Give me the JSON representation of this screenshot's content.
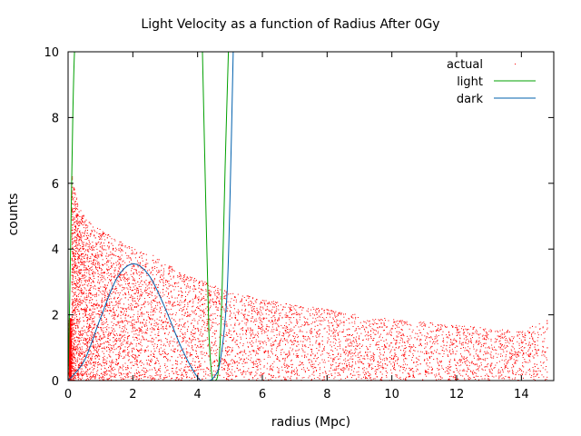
{
  "chart_data": {
    "type": "scatter",
    "title": "Light Velocity as a function of Radius After 0Gy",
    "xlabel": "radius (Mpc)",
    "ylabel": "counts",
    "xlim": [
      0,
      15
    ],
    "ylim": [
      0,
      10
    ],
    "xticks": [
      0,
      2,
      4,
      6,
      8,
      10,
      12,
      14
    ],
    "yticks": [
      0,
      2,
      4,
      6,
      8,
      10
    ],
    "grid": false,
    "legend_position": "top-right",
    "series": [
      {
        "name": "actual",
        "kind": "scatter",
        "color": "#ff0000",
        "description_points": [
          [
            0.1,
            6.3
          ],
          [
            0.2,
            5.8
          ],
          [
            0.3,
            5.4
          ],
          [
            0.5,
            5.0
          ],
          [
            0.7,
            4.8
          ],
          [
            1.0,
            4.6
          ],
          [
            1.5,
            4.3
          ],
          [
            2.0,
            4.1
          ],
          [
            2.5,
            3.9
          ],
          [
            3.0,
            3.6
          ],
          [
            3.5,
            3.3
          ],
          [
            4.0,
            3.1
          ],
          [
            5.0,
            2.7
          ],
          [
            6.0,
            2.5
          ],
          [
            7.0,
            2.3
          ],
          [
            8.0,
            2.2
          ],
          [
            9.0,
            2.0
          ],
          [
            10.0,
            1.9
          ],
          [
            11.0,
            1.8
          ],
          [
            12.0,
            1.7
          ],
          [
            13.0,
            1.6
          ],
          [
            14.0,
            1.5
          ],
          [
            14.8,
            1.9
          ]
        ]
      },
      {
        "name": "light",
        "kind": "line",
        "color": "#00a000",
        "x": [
          0.0,
          0.05,
          0.1,
          0.15,
          0.2,
          0.25,
          null,
          4.15,
          4.25,
          4.35,
          4.45,
          4.55,
          4.65,
          4.75,
          4.85,
          4.95
        ],
        "y": [
          0.0,
          2.5,
          5.5,
          8.2,
          10.0,
          10.0,
          null,
          10.0,
          5.5,
          1.5,
          0.1,
          0.0,
          0.4,
          2.5,
          6.5,
          10.0
        ]
      },
      {
        "name": "dark",
        "kind": "line",
        "color": "#0060ad",
        "x": [
          0.0,
          0.5,
          1.0,
          1.5,
          2.0,
          2.5,
          3.0,
          3.5,
          4.0,
          4.3,
          4.5,
          4.7,
          4.9,
          5.0,
          5.1
        ],
        "y": [
          0.0,
          0.6,
          1.9,
          3.1,
          3.55,
          3.2,
          2.2,
          1.0,
          0.1,
          0.0,
          0.1,
          0.6,
          2.5,
          5.5,
          10.0
        ]
      }
    ]
  }
}
